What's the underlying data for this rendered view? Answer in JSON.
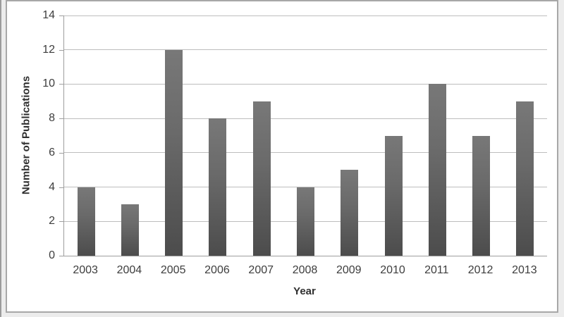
{
  "chart_data": {
    "type": "bar",
    "title": "",
    "categories": [
      "2003",
      "2004",
      "2005",
      "2006",
      "2007",
      "2008",
      "2009",
      "2010",
      "2011",
      "2012",
      "2013"
    ],
    "values": [
      4,
      3,
      12,
      8,
      9,
      4,
      5,
      7,
      10,
      7,
      9
    ],
    "xlabel": "Year",
    "ylabel": "Number of Publications",
    "ylim": [
      0,
      14
    ],
    "yticks": [
      0,
      2,
      4,
      6,
      8,
      10,
      12,
      14
    ],
    "grid": true,
    "legend": false,
    "colors": {
      "bar_top": "#787878",
      "bar_bottom": "#4c4c4c",
      "gridline": "#bdbdbd",
      "axis_line": "#9e9e9e",
      "tick_text": "#3d3d3d",
      "axis_title_text": "#2f2f2f",
      "frame_border": "#a8a8a8",
      "outer_background": "#ececec",
      "plot_background": "#ffffff"
    }
  }
}
